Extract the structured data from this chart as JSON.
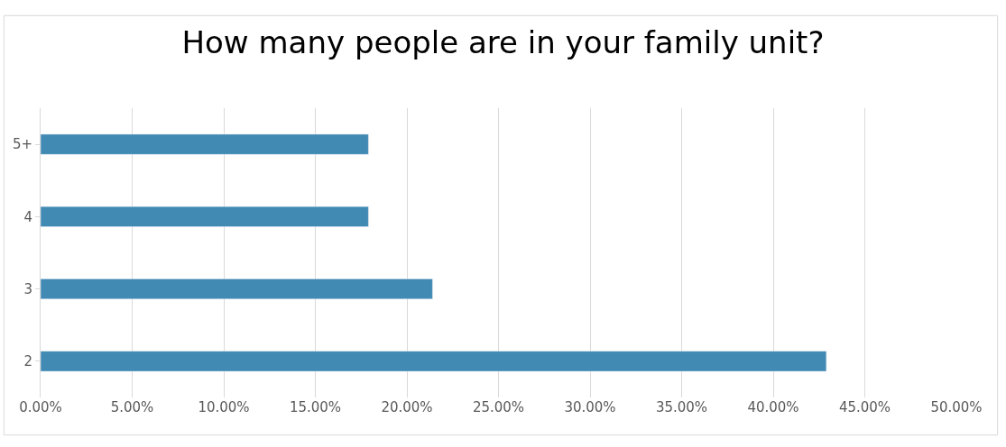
{
  "chart_data": {
    "type": "bar",
    "orientation": "horizontal",
    "title": "How many people are in your family unit?",
    "categories": [
      "5+",
      "4",
      "3",
      "2"
    ],
    "values": [
      17.9,
      17.9,
      21.4,
      42.9
    ],
    "color": "#418ab3",
    "xlim": [
      0,
      50
    ],
    "xticks": [
      {
        "value": 0,
        "label": "0.00%"
      },
      {
        "value": 5,
        "label": "5.00%"
      },
      {
        "value": 10,
        "label": "10.00%"
      },
      {
        "value": 15,
        "label": "15.00%"
      },
      {
        "value": 20,
        "label": "20.00%"
      },
      {
        "value": 25,
        "label": "25.00%"
      },
      {
        "value": 30,
        "label": "30.00%"
      },
      {
        "value": 35,
        "label": "35.00%"
      },
      {
        "value": 40,
        "label": "40.00%"
      },
      {
        "value": 45,
        "label": "45.00%"
      },
      {
        "value": 50,
        "label": "50.00%"
      }
    ],
    "grid": "x",
    "legend": false
  }
}
